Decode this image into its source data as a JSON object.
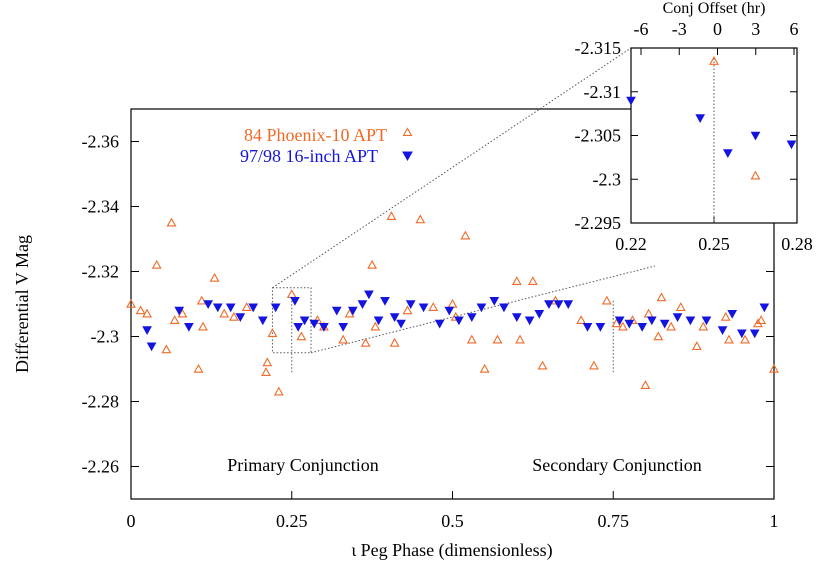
{
  "chart_data": [
    {
      "type": "scatter",
      "title": "",
      "xlabel": "ι Peg Phase (dimensionless)",
      "ylabel": "Differential V Mag",
      "xlim": [
        0,
        1
      ],
      "ylim": [
        -2.25,
        -2.37
      ],
      "y_axis_inverted": true,
      "xticks": [
        0,
        0.25,
        0.5,
        0.75,
        1
      ],
      "xtick_labels": [
        "0",
        "0.25",
        "0.5",
        "0.75",
        "1"
      ],
      "yticks": [
        -2.26,
        -2.28,
        -2.3,
        -2.32,
        -2.34,
        -2.36
      ],
      "ytick_labels": [
        "-2.26",
        "-2.28",
        "-2.3",
        "-2.32",
        "-2.34",
        "-2.36"
      ],
      "grid": false,
      "legend_position": "top-left",
      "annotations": [
        {
          "text": "Primary Conjunction",
          "x": 0.27
        },
        {
          "text": "Secondary Conjunction",
          "x": 0.75
        }
      ],
      "conjunction_markers": [
        0.25,
        0.75
      ],
      "zoom_box": {
        "x": [
          0.22,
          0.28
        ],
        "y": [
          -2.295,
          -2.315
        ]
      },
      "series": [
        {
          "name": "84 Phoenix-10 APT",
          "marker": "open-triangle-up",
          "color": "#f06a28",
          "points": [
            [
              0.0,
              -2.31
            ],
            [
              0.015,
              -2.308
            ],
            [
              0.025,
              -2.307
            ],
            [
              0.04,
              -2.322
            ],
            [
              0.055,
              -2.296
            ],
            [
              0.063,
              -2.335
            ],
            [
              0.068,
              -2.305
            ],
            [
              0.08,
              -2.307
            ],
            [
              0.105,
              -2.29
            ],
            [
              0.11,
              -2.311
            ],
            [
              0.112,
              -2.303
            ],
            [
              0.13,
              -2.318
            ],
            [
              0.145,
              -2.307
            ],
            [
              0.16,
              -2.306
            ],
            [
              0.18,
              -2.309
            ],
            [
              0.21,
              -2.289
            ],
            [
              0.212,
              -2.292
            ],
            [
              0.22,
              -2.301
            ],
            [
              0.23,
              -2.283
            ],
            [
              0.25,
              -2.313
            ],
            [
              0.265,
              -2.3
            ],
            [
              0.29,
              -2.305
            ],
            [
              0.3,
              -2.303
            ],
            [
              0.33,
              -2.299
            ],
            [
              0.34,
              -2.307
            ],
            [
              0.365,
              -2.298
            ],
            [
              0.375,
              -2.322
            ],
            [
              0.38,
              -2.303
            ],
            [
              0.405,
              -2.337
            ],
            [
              0.41,
              -2.298
            ],
            [
              0.43,
              -2.308
            ],
            [
              0.45,
              -2.336
            ],
            [
              0.47,
              -2.309
            ],
            [
              0.5,
              -2.31
            ],
            [
              0.505,
              -2.306
            ],
            [
              0.52,
              -2.331
            ],
            [
              0.53,
              -2.299
            ],
            [
              0.55,
              -2.29
            ],
            [
              0.57,
              -2.299
            ],
            [
              0.6,
              -2.317
            ],
            [
              0.605,
              -2.299
            ],
            [
              0.625,
              -2.317
            ],
            [
              0.64,
              -2.291
            ],
            [
              0.66,
              -2.311
            ],
            [
              0.7,
              -2.305
            ],
            [
              0.72,
              -2.291
            ],
            [
              0.74,
              -2.311
            ],
            [
              0.755,
              -2.304
            ],
            [
              0.765,
              -2.303
            ],
            [
              0.78,
              -2.305
            ],
            [
              0.8,
              -2.285
            ],
            [
              0.805,
              -2.307
            ],
            [
              0.82,
              -2.3
            ],
            [
              0.825,
              -2.312
            ],
            [
              0.84,
              -2.303
            ],
            [
              0.855,
              -2.309
            ],
            [
              0.88,
              -2.297
            ],
            [
              0.89,
              -2.303
            ],
            [
              0.925,
              -2.306
            ],
            [
              0.93,
              -2.299
            ],
            [
              0.955,
              -2.299
            ],
            [
              0.975,
              -2.304
            ],
            [
              0.98,
              -2.305
            ],
            [
              1.0,
              -2.29
            ]
          ]
        },
        {
          "name": "97/98 16-inch APT",
          "marker": "filled-triangle-down",
          "color": "#1414e0",
          "points": [
            [
              0.025,
              -2.302
            ],
            [
              0.032,
              -2.297
            ],
            [
              0.075,
              -2.308
            ],
            [
              0.09,
              -2.303
            ],
            [
              0.12,
              -2.31
            ],
            [
              0.135,
              -2.309
            ],
            [
              0.155,
              -2.309
            ],
            [
              0.17,
              -2.306
            ],
            [
              0.19,
              -2.309
            ],
            [
              0.205,
              -2.305
            ],
            [
              0.225,
              -2.309
            ],
            [
              0.255,
              -2.311
            ],
            [
              0.26,
              -2.303
            ],
            [
              0.27,
              -2.305
            ],
            [
              0.285,
              -2.304
            ],
            [
              0.3,
              -2.303
            ],
            [
              0.32,
              -2.308
            ],
            [
              0.33,
              -2.303
            ],
            [
              0.345,
              -2.308
            ],
            [
              0.36,
              -2.31
            ],
            [
              0.37,
              -2.313
            ],
            [
              0.385,
              -2.305
            ],
            [
              0.395,
              -2.311
            ],
            [
              0.41,
              -2.306
            ],
            [
              0.42,
              -2.304
            ],
            [
              0.435,
              -2.31
            ],
            [
              0.455,
              -2.309
            ],
            [
              0.48,
              -2.304
            ],
            [
              0.495,
              -2.308
            ],
            [
              0.51,
              -2.305
            ],
            [
              0.53,
              -2.306
            ],
            [
              0.545,
              -2.309
            ],
            [
              0.565,
              -2.311
            ],
            [
              0.58,
              -2.309
            ],
            [
              0.6,
              -2.306
            ],
            [
              0.62,
              -2.305
            ],
            [
              0.635,
              -2.307
            ],
            [
              0.65,
              -2.31
            ],
            [
              0.665,
              -2.31
            ],
            [
              0.68,
              -2.31
            ],
            [
              0.71,
              -2.303
            ],
            [
              0.73,
              -2.303
            ],
            [
              0.76,
              -2.305
            ],
            [
              0.775,
              -2.304
            ],
            [
              0.795,
              -2.303
            ],
            [
              0.81,
              -2.305
            ],
            [
              0.83,
              -2.304
            ],
            [
              0.85,
              -2.306
            ],
            [
              0.87,
              -2.305
            ],
            [
              0.895,
              -2.305
            ],
            [
              0.92,
              -2.302
            ],
            [
              0.935,
              -2.307
            ],
            [
              0.95,
              -2.301
            ],
            [
              0.97,
              -2.301
            ],
            [
              0.985,
              -2.309
            ]
          ]
        }
      ]
    },
    {
      "type": "scatter",
      "title": "",
      "xlabel": "",
      "top_axis_label": "Conj Offset (hr)",
      "xlim": [
        0.22,
        0.28
      ],
      "ylim": [
        -2.295,
        -2.315
      ],
      "y_axis_inverted": true,
      "xticks": [
        0.22,
        0.25,
        0.28
      ],
      "xtick_labels": [
        "0.22",
        "0.25",
        "0.28"
      ],
      "yticks": [
        -2.295,
        -2.3,
        -2.305,
        -2.31,
        -2.315
      ],
      "ytick_labels": [
        "-2.295",
        "-2.3",
        "-2.305",
        "-2.31",
        "-2.315"
      ],
      "top_ticks": [
        -6,
        -3,
        0,
        3,
        6
      ],
      "top_tick_labels": [
        "-6",
        "-3",
        "0",
        "3",
        "6"
      ],
      "center_line_x": 0.25,
      "series": [
        {
          "marker": "open-triangle-up",
          "color": "#f06a28",
          "points": [
            [
              0.25,
              -2.3135
            ],
            [
              0.265,
              -2.3004
            ]
          ]
        },
        {
          "marker": "filled-triangle-down",
          "color": "#1414e0",
          "points": [
            [
              0.22,
              -2.309
            ],
            [
              0.245,
              -2.307
            ],
            [
              0.255,
              -2.303
            ],
            [
              0.265,
              -2.305
            ],
            [
              0.278,
              -2.304
            ]
          ]
        }
      ]
    }
  ]
}
